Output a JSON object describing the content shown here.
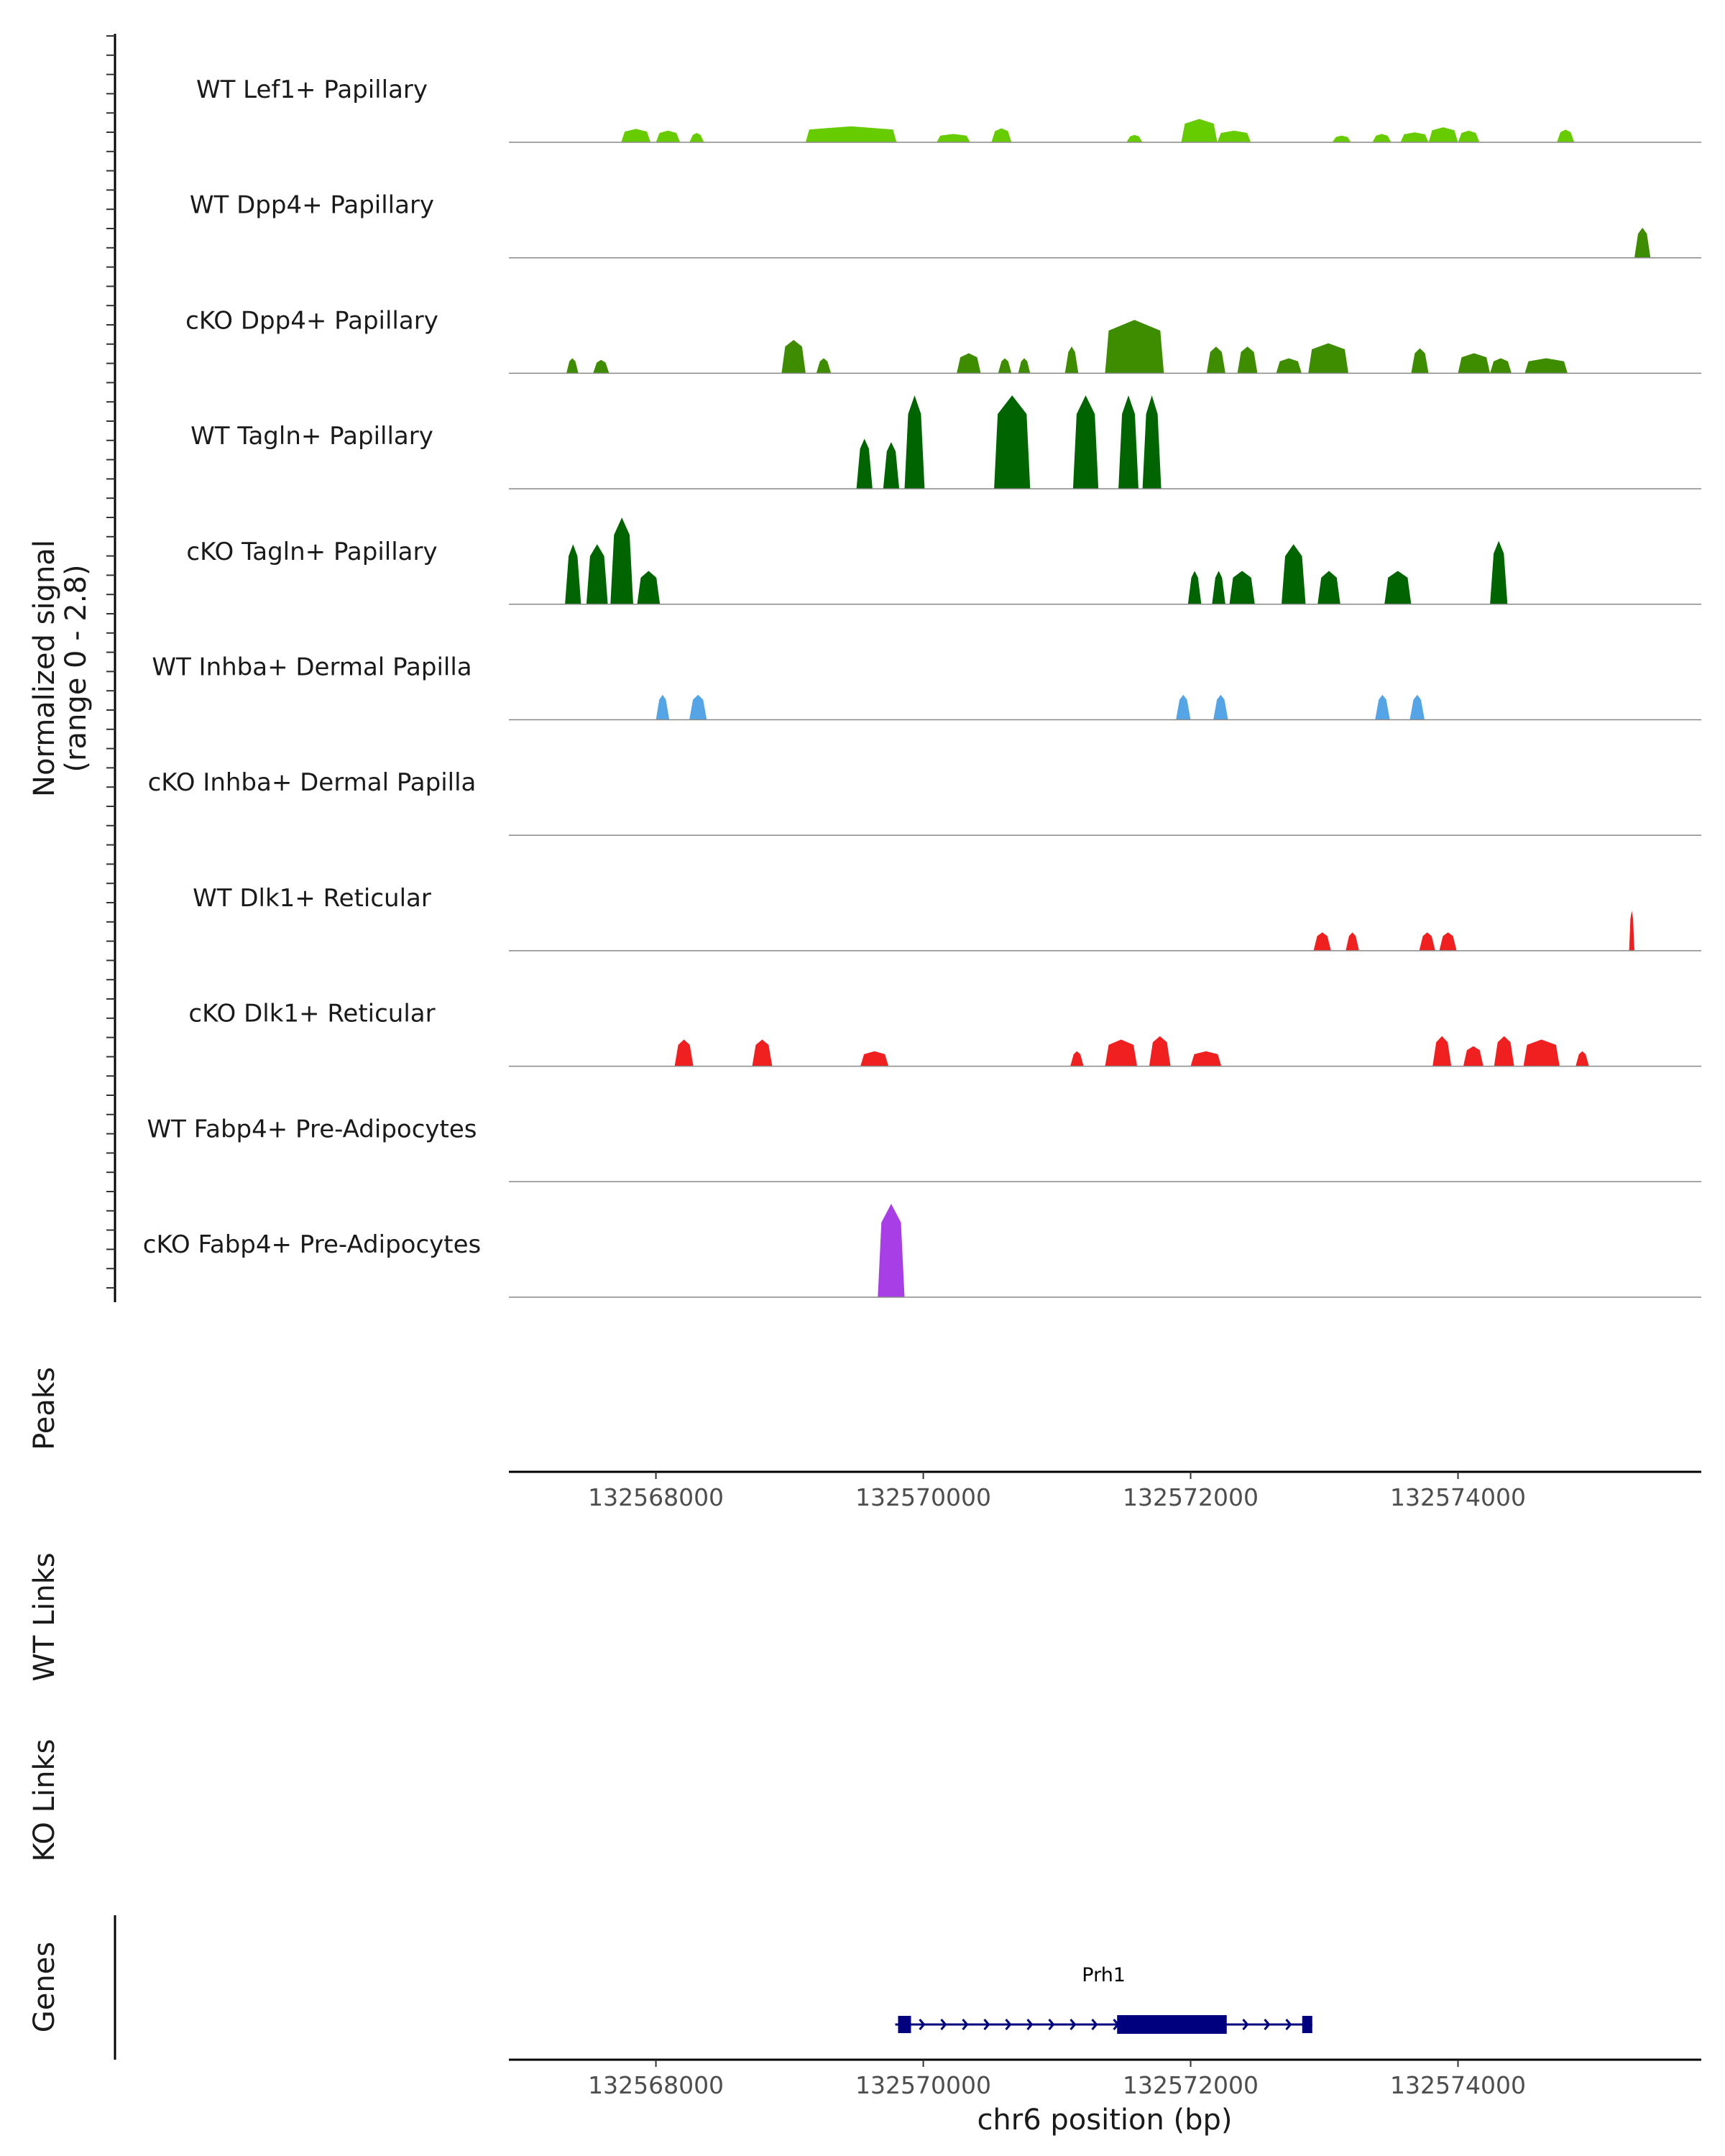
{
  "chart_data": {
    "type": "area",
    "region": {
      "chrom": "chr6",
      "start": 132566900,
      "end": 132575820
    },
    "x_ticks": [
      132568000,
      132570000,
      132572000,
      132574000
    ],
    "x_tick_labels": [
      "132568000",
      "132570000",
      "132572000",
      "132574000"
    ],
    "xlabel": "chr6 position (bp)",
    "ylabel_line1": "Normalized signal",
    "ylabel_line2": "(range 0 - 2.8)",
    "ylim": [
      0,
      2.8
    ],
    "panel_labels": {
      "peaks": "Peaks",
      "wt_links": "WT Links",
      "ko_links": "KO Links",
      "genes": "Genes"
    },
    "tracks": [
      {
        "name": "WT Lef1+ Papillary",
        "color": "#66cc00",
        "bins": [
          [
            132567740,
            132567960,
            0.4
          ],
          [
            132568000,
            132568180,
            0.35
          ],
          [
            132568250,
            132568360,
            0.28
          ],
          [
            132569120,
            132569800,
            0.48
          ],
          [
            132570100,
            132570350,
            0.25
          ],
          [
            132570510,
            132570660,
            0.42
          ],
          [
            132571520,
            132571640,
            0.22
          ],
          [
            132571930,
            132572200,
            0.7
          ],
          [
            132572200,
            132572450,
            0.35
          ],
          [
            132573060,
            132573200,
            0.2
          ],
          [
            132573360,
            132573500,
            0.25
          ],
          [
            132573570,
            132573780,
            0.3
          ],
          [
            132573780,
            132574000,
            0.45
          ],
          [
            132574000,
            132574160,
            0.35
          ],
          [
            132574740,
            132574870,
            0.38
          ]
        ]
      },
      {
        "name": "WT Dpp4+ Papillary",
        "color": "#3e8c00",
        "bins": [
          [
            132575320,
            132575440,
            0.9
          ]
        ]
      },
      {
        "name": "cKO Dpp4+ Papillary",
        "color": "#3e8c00",
        "bins": [
          [
            132567330,
            132567420,
            0.45
          ],
          [
            132567530,
            132567650,
            0.4
          ],
          [
            132568940,
            132569120,
            1.0
          ],
          [
            132569200,
            132569310,
            0.45
          ],
          [
            132570250,
            132570430,
            0.6
          ],
          [
            132570560,
            132570660,
            0.45
          ],
          [
            132570710,
            132570800,
            0.45
          ],
          [
            132571060,
            132571160,
            0.8
          ],
          [
            132571360,
            132571800,
            1.6
          ],
          [
            132572120,
            132572260,
            0.8
          ],
          [
            132572350,
            132572500,
            0.8
          ],
          [
            132572640,
            132572830,
            0.45
          ],
          [
            132572880,
            132573180,
            0.9
          ],
          [
            132573650,
            132573780,
            0.75
          ],
          [
            132574000,
            132574240,
            0.6
          ],
          [
            132574240,
            132574400,
            0.45
          ],
          [
            132574500,
            132574820,
            0.45
          ]
        ]
      },
      {
        "name": "WT Tagln+ Papillary",
        "color": "#006400",
        "bins": [
          [
            132569500,
            132569620,
            1.5
          ],
          [
            132569700,
            132569820,
            1.4
          ],
          [
            132569860,
            132570010,
            2.8
          ],
          [
            132570530,
            132570800,
            2.8
          ],
          [
            132571120,
            132571310,
            2.8
          ],
          [
            132571460,
            132571610,
            2.8
          ],
          [
            132571640,
            132571780,
            2.8
          ]
        ]
      },
      {
        "name": "cKO Tagln+ Papillary",
        "color": "#006400",
        "bins": [
          [
            132567320,
            132567440,
            1.8
          ],
          [
            132567480,
            132567640,
            1.8
          ],
          [
            132567660,
            132567830,
            2.6
          ],
          [
            132567860,
            132568030,
            1.0
          ],
          [
            132571980,
            132572080,
            1.0
          ],
          [
            132572160,
            132572260,
            1.0
          ],
          [
            132572290,
            132572480,
            1.0
          ],
          [
            132572680,
            132572860,
            1.8
          ],
          [
            132572950,
            132573120,
            1.0
          ],
          [
            132573450,
            132573650,
            1.0
          ],
          [
            132574240,
            132574370,
            1.9
          ]
        ]
      },
      {
        "name": "WT Inhba+ Dermal Papilla",
        "color": "#55a5e6",
        "bins": [
          [
            132568000,
            132568100,
            0.75
          ],
          [
            132568250,
            132568380,
            0.75
          ],
          [
            132571890,
            132572000,
            0.75
          ],
          [
            132572170,
            132572280,
            0.75
          ],
          [
            132573380,
            132573490,
            0.75
          ],
          [
            132573640,
            132573750,
            0.75
          ]
        ]
      },
      {
        "name": "cKO Inhba+ Dermal Papilla",
        "color": "#1f77b4",
        "bins": []
      },
      {
        "name": "WT Dlk1+ Reticular",
        "color": "#f02020",
        "bins": [
          [
            132572920,
            132573050,
            0.55
          ],
          [
            132573160,
            132573260,
            0.55
          ],
          [
            132573710,
            132573830,
            0.55
          ],
          [
            132573860,
            132573990,
            0.55
          ],
          [
            132575280,
            132575320,
            1.2
          ]
        ]
      },
      {
        "name": "cKO Dlk1+ Reticular",
        "color": "#f02020",
        "bins": [
          [
            132568140,
            132568280,
            0.8
          ],
          [
            132568720,
            132568870,
            0.8
          ],
          [
            132569530,
            132569740,
            0.45
          ],
          [
            132571100,
            132571200,
            0.45
          ],
          [
            132571360,
            132571600,
            0.8
          ],
          [
            132571690,
            132571850,
            0.9
          ],
          [
            132572000,
            132572230,
            0.45
          ],
          [
            132573810,
            132573950,
            0.9
          ],
          [
            132574040,
            132574190,
            0.6
          ],
          [
            132574270,
            132574420,
            0.9
          ],
          [
            132574490,
            132574760,
            0.8
          ],
          [
            132574880,
            132574980,
            0.45
          ]
        ]
      },
      {
        "name": "WT Fabp4+ Pre-Adipocytes",
        "color": "#a83ee6",
        "bins": []
      },
      {
        "name": "cKO Fabp4+ Pre-Adipocytes",
        "color": "#a83ee6",
        "bins": [
          [
            132569660,
            132569860,
            2.8
          ]
        ]
      }
    ],
    "genes": [
      {
        "name": "Prh1",
        "strand": "+",
        "start": 132569790,
        "end": 132572910,
        "thick_start": 132571450,
        "thick_end": 132572270
      }
    ]
  }
}
